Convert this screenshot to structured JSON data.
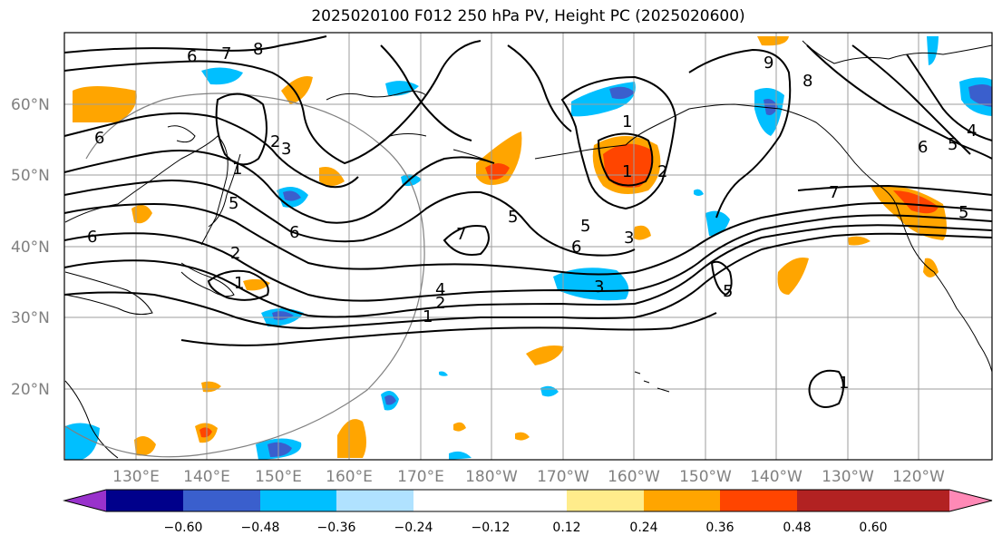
{
  "title": "2025020100 F012 250 hPa PV, Height PC (2025020600)",
  "lat_labels": [
    "60°N",
    "50°N",
    "40°N",
    "30°N",
    "20°N"
  ],
  "lon_labels": [
    "130°E",
    "140°E",
    "150°E",
    "160°E",
    "170°E",
    "180°W",
    "170°W",
    "160°W",
    "150°W",
    "140°W",
    "130°W",
    "120°W"
  ],
  "colorbar": {
    "colors": [
      "#9932cc",
      "#00008b",
      "#3a5fcd",
      "#00bfff",
      "#b0e2ff",
      "#ffffff",
      "#ffec8b",
      "#ffa500",
      "#ff4500",
      "#b22222",
      "#ff89b6"
    ],
    "tick_labels": [
      "−0.60",
      "−0.48",
      "−0.36",
      "−0.24",
      "−0.12",
      "0.12",
      "0.24",
      "0.36",
      "0.48",
      "0.60"
    ]
  },
  "contour_labels": [
    "7",
    "8",
    "6",
    "6",
    "2",
    "3",
    "1",
    "5",
    "6",
    "6",
    "2",
    "1",
    "2",
    "4",
    "1",
    "7",
    "5",
    "6",
    "3",
    "1",
    "1",
    "2",
    "5",
    "3",
    "5",
    "9",
    "8",
    "6",
    "5",
    "4",
    "7",
    "5",
    "1"
  ],
  "colors": {
    "positive": "#ffa500",
    "strong_positive": "#ff4500",
    "negative": "#00bfff",
    "strong_negative": "#3a5fcd",
    "grid": "#9e9e9e"
  }
}
